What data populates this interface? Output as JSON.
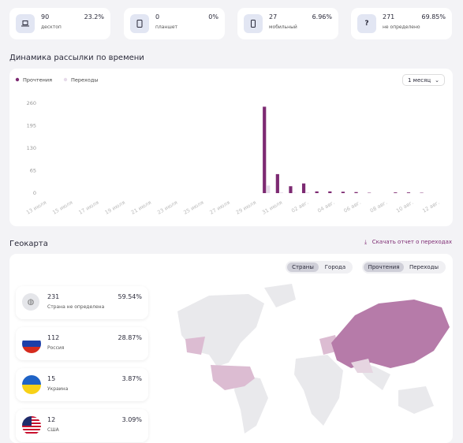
{
  "stats": [
    {
      "icon": null,
      "count": "90",
      "percent": "23.2%",
      "label": "десктоп"
    },
    {
      "icon": null,
      "count": "0",
      "percent": "0%",
      "label": "планшет"
    },
    {
      "icon": null,
      "count": "27",
      "percent": "6.96%",
      "label": "мобильный"
    },
    {
      "icon": "?",
      "count": "271",
      "percent": "69.85%",
      "label": "не определено"
    }
  ],
  "chart_section": {
    "title": "Динамика рассылки по времени",
    "period": "1 месяц"
  },
  "chart_data": {
    "type": "bar",
    "categories": [
      "13 июля",
      null,
      "15 июля",
      null,
      "17 июля",
      null,
      "19 июля",
      null,
      "21 июля",
      null,
      "23 июля",
      null,
      "25 июля",
      null,
      "27 июля",
      null,
      "29 июля",
      null,
      "31 июля",
      null,
      "02 авг.",
      null,
      "04 авг.",
      null,
      "06 авг.",
      null,
      "08 авг.",
      null,
      "10 авг.",
      null,
      "12 авг."
    ],
    "series": [
      {
        "name": "Прочтения",
        "color": "#7d2a72",
        "values": [
          0,
          0,
          0,
          0,
          0,
          0,
          0,
          0,
          0,
          0,
          0,
          0,
          0,
          0,
          0,
          0,
          0,
          250,
          55,
          20,
          28,
          5,
          5,
          4,
          3,
          1,
          0,
          2,
          2,
          1,
          0
        ]
      },
      {
        "name": "Переходы",
        "color": "#e6dbea",
        "values": [
          0,
          0,
          0,
          0,
          0,
          0,
          0,
          0,
          0,
          0,
          0,
          0,
          0,
          0,
          0,
          0,
          0,
          22,
          2,
          1,
          2,
          0,
          0,
          0,
          0,
          0,
          0,
          0,
          0,
          0,
          0
        ]
      }
    ],
    "ylim": [
      0,
      260
    ],
    "yticks": [
      0,
      65,
      130,
      195,
      260
    ],
    "grid": false,
    "legend": "top-left"
  },
  "geo": {
    "title": "Геокарта",
    "download": "Скачать отчет о переходах",
    "toggle1": [
      "Страны",
      "Города"
    ],
    "toggle2": [
      "Прочтения",
      "Переходы"
    ],
    "countries": [
      {
        "count": "231",
        "percent": "59.54%",
        "name": "Страна не определена"
      },
      {
        "count": "112",
        "percent": "28.87%",
        "name": "Россия"
      },
      {
        "count": "15",
        "percent": "3.87%",
        "name": "Украина"
      },
      {
        "count": "12",
        "percent": "3.09%",
        "name": "США"
      }
    ]
  }
}
